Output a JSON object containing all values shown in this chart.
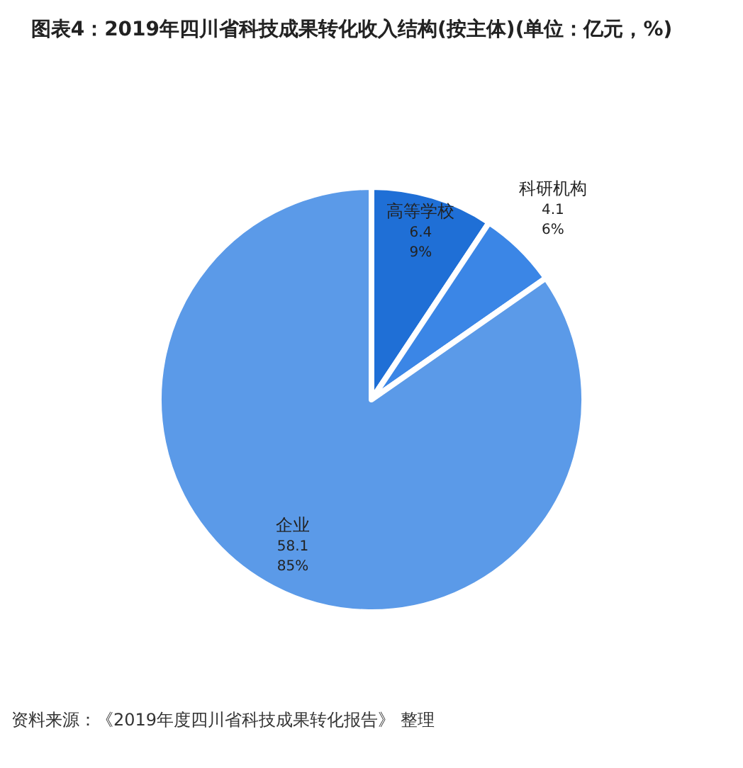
{
  "chart_data": {
    "type": "pie",
    "title": "图表4：2019年四川省科技成果转化收入结构(按主体)(单位：亿元，%)",
    "categories": [
      "高等学校",
      "科研机构",
      "企业"
    ],
    "values": [
      6.4,
      4.1,
      58.1
    ],
    "colors": [
      "#1f6fd6",
      "#3b86e6",
      "#5b9ae8"
    ],
    "value_labels": [
      "6.4\n9%",
      "4.1\n6%",
      "58.1\n85%"
    ],
    "annotations": [
      "资料来源：《2019年度四川省科技成果转化报告》 整理"
    ]
  }
}
